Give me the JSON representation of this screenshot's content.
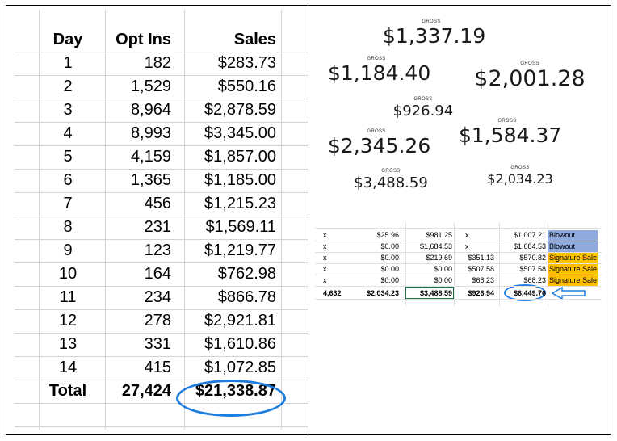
{
  "left_table": {
    "headers": [
      "Day",
      "Opt Ins",
      "Sales"
    ],
    "rows": [
      [
        "1",
        "182",
        "$283.73"
      ],
      [
        "2",
        "1,529",
        "$550.16"
      ],
      [
        "3",
        "8,964",
        "$2,878.59"
      ],
      [
        "4",
        "8,993",
        "$3,345.00"
      ],
      [
        "5",
        "4,159",
        "$1,857.00"
      ],
      [
        "6",
        "1,365",
        "$1,185.00"
      ],
      [
        "7",
        "456",
        "$1,215.23"
      ],
      [
        "8",
        "231",
        "$1,569.11"
      ],
      [
        "9",
        "123",
        "$1,219.77"
      ],
      [
        "10",
        "164",
        "$762.98"
      ],
      [
        "11",
        "234",
        "$866.78"
      ],
      [
        "12",
        "278",
        "$2,921.81"
      ],
      [
        "13",
        "331",
        "$1,610.86"
      ],
      [
        "14",
        "415",
        "$1,072.85"
      ]
    ],
    "total": [
      "Total",
      "27,424",
      "$21,338.87"
    ],
    "highlight_color": "#1f7de0"
  },
  "gross_tiles": [
    {
      "label": "GROSS",
      "amount": "$1,337.19"
    },
    {
      "label": "GROSS",
      "amount": "$1,184.40"
    },
    {
      "label": "GROSS",
      "amount": "$2,001.28"
    },
    {
      "label": "GROSS",
      "amount": "$926.94"
    },
    {
      "label": "GROSS",
      "amount": "$2,345.26"
    },
    {
      "label": "GROSS",
      "amount": "$1,584.37"
    },
    {
      "label": "GROSS",
      "amount": "$3,488.59"
    },
    {
      "label": "GROSS",
      "amount": "$2,034.23"
    }
  ],
  "snippet": {
    "rows": [
      [
        "x",
        "$25.96",
        "$981.25",
        "x",
        "$1,007.21",
        "Blowout"
      ],
      [
        "x",
        "$0.00",
        "$1,684.53",
        "x",
        "$1,684.53",
        "Blowout"
      ],
      [
        "x",
        "$0.00",
        "$219.69",
        "$351.13",
        "$570.82",
        "Signature Sale"
      ],
      [
        "x",
        "$0.00",
        "$0.00",
        "$507.58",
        "$507.58",
        "Signature Sale"
      ],
      [
        "x",
        "$0.00",
        "$0.00",
        "$68.23",
        "$68.23",
        "Signature Sale"
      ]
    ],
    "total": [
      "4,632",
      "$2,034.23",
      "$3,488.59",
      "$926.94",
      "$6,449.76"
    ],
    "colors": {
      "blowout": "#8faadc",
      "signature": "#ffc000",
      "ring": "#1f7de0"
    },
    "icons": [
      "left-arrow-icon"
    ]
  }
}
